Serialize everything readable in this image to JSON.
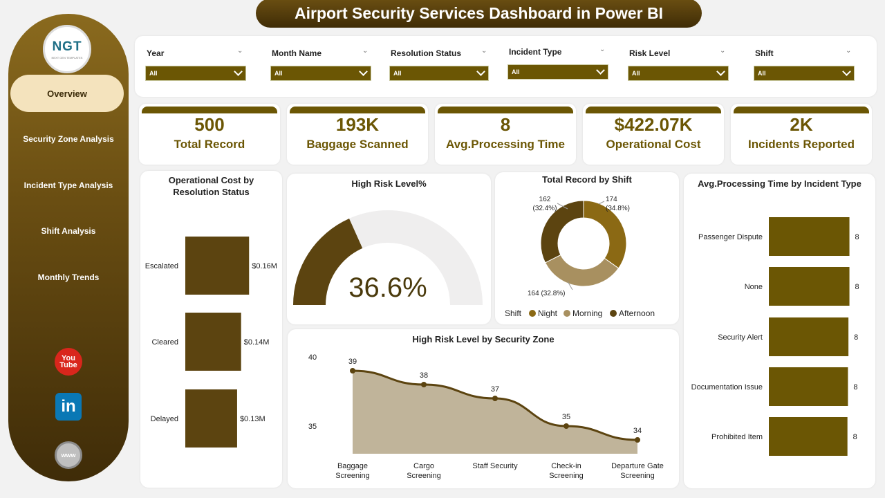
{
  "title": "Airport Security Services Dashboard in Power BI",
  "logo": {
    "name": "NGT",
    "tagline": "NEXT GEN TEMPLATES"
  },
  "nav": [
    "Overview",
    "Security Zone Analysis",
    "Incident Type Analysis",
    "Shift Analysis",
    "Monthly Trends"
  ],
  "social": {
    "youtube_top": "You",
    "youtube_bottom": "Tube",
    "linkedin": "in",
    "web": "www"
  },
  "filters": [
    {
      "label": "Year",
      "value": "All"
    },
    {
      "label": "Month Name",
      "value": "All"
    },
    {
      "label": "Resolution Status",
      "value": "All"
    },
    {
      "label": "Incident Type",
      "value": "All"
    },
    {
      "label": "Risk Level",
      "value": "All"
    },
    {
      "label": "Shift",
      "value": "All"
    }
  ],
  "kpis": [
    {
      "value": "500",
      "label": "Total Record"
    },
    {
      "value": "193K",
      "label": "Baggage Scanned"
    },
    {
      "value": "8",
      "label": "Avg.Processing Time"
    },
    {
      "value": "$422.07K",
      "label": "Operational Cost"
    },
    {
      "value": "2K",
      "label": "Incidents Reported"
    }
  ],
  "colors": {
    "accent": "#6b5604",
    "dark_brown": "#5c4410",
    "mid_brown": "#8b6914",
    "light_brown": "#a89060"
  },
  "chart_data": [
    {
      "type": "bar",
      "title": "Operational Cost by Resolution Status",
      "categories": [
        "Escalated",
        "Cleared",
        "Delayed"
      ],
      "values": [
        0.16,
        0.14,
        0.13
      ],
      "value_labels": [
        "$0.16M",
        "$0.14M",
        "$0.13M"
      ],
      "unit": "M USD"
    },
    {
      "type": "gauge",
      "title": "High Risk Level%",
      "value": 36.6,
      "value_label": "36.6%",
      "range": [
        0,
        100
      ]
    },
    {
      "type": "pie",
      "title": "Total Record by Shift",
      "legend_title": "Shift",
      "categories": [
        "Night",
        "Morning",
        "Afternoon"
      ],
      "values": [
        174,
        164,
        162
      ],
      "labels": [
        "174 (34.8%)",
        "164 (32.8%)",
        "162 (32.4%)"
      ]
    },
    {
      "type": "area",
      "title": "High Risk Level by Security Zone",
      "categories": [
        "Baggage Screening",
        "Cargo Screening",
        "Staff Security",
        "Check-in Screening",
        "Departure Gate Screening"
      ],
      "values": [
        39,
        38,
        37,
        35,
        34
      ],
      "yticks": [
        "40",
        "35"
      ],
      "ylim": [
        33,
        41
      ]
    },
    {
      "type": "bar",
      "title": "Avg.Processing Time by Incident Type",
      "categories": [
        "Passenger Dispute",
        "None",
        "Security Alert",
        "Documentation Issue",
        "Prohibited Item"
      ],
      "values": [
        8.1,
        8.1,
        8.0,
        7.95,
        7.9
      ],
      "value_labels": [
        "8",
        "8",
        "8",
        "8",
        "8"
      ]
    }
  ]
}
